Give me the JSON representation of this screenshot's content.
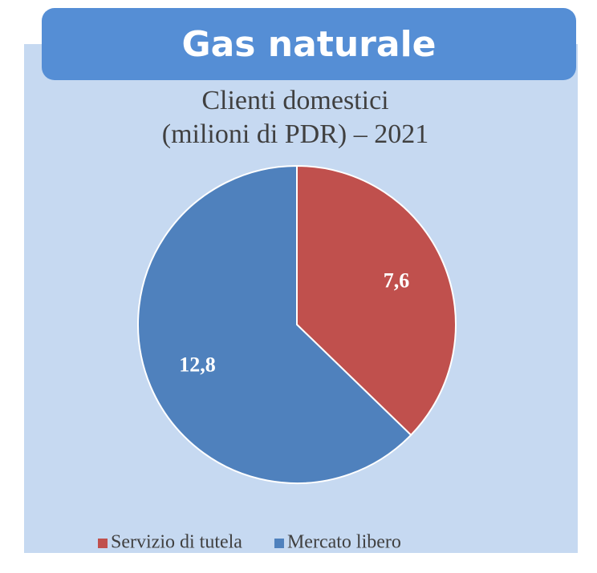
{
  "chart_data": {
    "type": "pie",
    "header": "Gas naturale",
    "title": [
      "Clienti domestici",
      "(milioni di PDR) – 2021"
    ],
    "categories": [
      "Servizio di tutela",
      "Mercato libero"
    ],
    "values": [
      7.6,
      12.8
    ],
    "value_labels": [
      "7,6",
      "12,8"
    ],
    "colors": [
      "#c0504d",
      "#4f81bd"
    ],
    "legend": "bottom"
  }
}
